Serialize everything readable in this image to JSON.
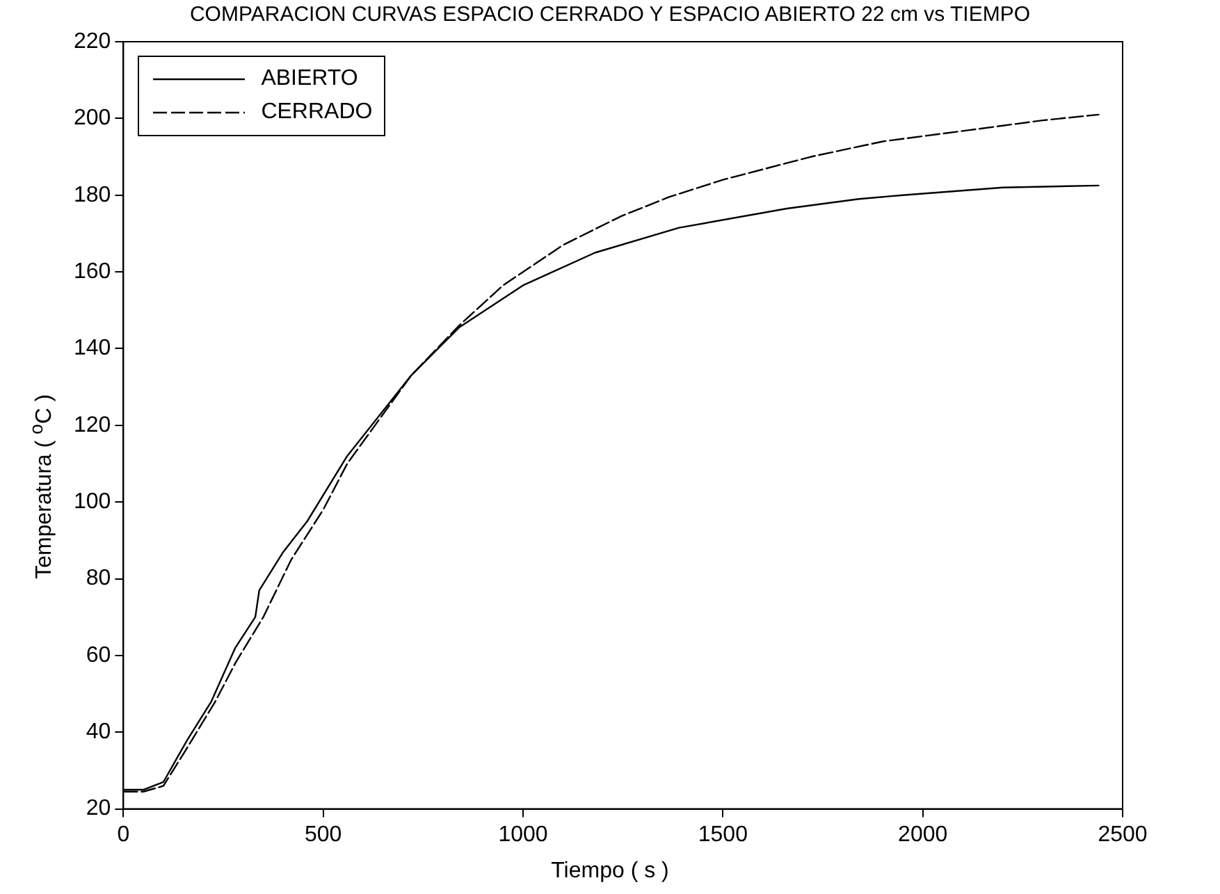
{
  "chart_data": {
    "type": "line",
    "title": "COMPARACION CURVAS ESPACIO CERRADO Y ESPACIO ABIERTO 22 cm vs TIEMPO",
    "xlabel": "Tiempo ( s )",
    "ylabel": "Temperatura ( $^{o}$C )",
    "xlim": [
      0,
      2500
    ],
    "xticks": [
      0,
      500,
      1000,
      1500,
      2000,
      2500
    ],
    "ylim": [
      20,
      220
    ],
    "yticks": [
      20,
      40,
      60,
      80,
      100,
      120,
      140,
      160,
      180,
      200,
      220
    ],
    "grid": false,
    "legend": "top left",
    "marker": "none",
    "series": [
      {
        "name": "ABIERTO",
        "color": "#000000",
        "line_style": "solid",
        "x": [
          0,
          50,
          100,
          160,
          220,
          280,
          330,
          340,
          400,
          460,
          560,
          720,
          840,
          1000,
          1180,
          1390,
          1660,
          1840,
          1950,
          2200,
          2440
        ],
        "values": [
          25,
          25,
          27,
          38,
          48,
          62,
          70,
          77,
          87,
          95,
          112,
          133,
          145.5,
          156.5,
          165,
          171.5,
          176.5,
          179,
          180,
          182,
          182.5
        ]
      },
      {
        "name": "CERRADO",
        "color": "#000000",
        "line_style": "dashed",
        "x": [
          0,
          50,
          100,
          160,
          230,
          280,
          350,
          420,
          500,
          560,
          720,
          840,
          950,
          1100,
          1245,
          1365,
          1500,
          1720,
          1900,
          2120,
          2300,
          2440
        ],
        "values": [
          24.5,
          24.5,
          26,
          36,
          48,
          58,
          70,
          85,
          98,
          110,
          133,
          146,
          156.5,
          167,
          174.5,
          179.5,
          184,
          190,
          194,
          197,
          199.5,
          201
        ]
      }
    ]
  }
}
